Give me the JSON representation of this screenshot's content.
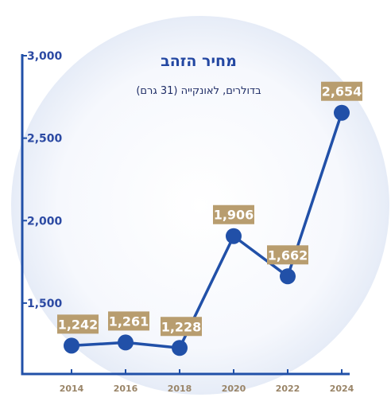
{
  "colors": {
    "line": "#2150a8",
    "axis": "#2150a8",
    "label_bg": "#b89d6f",
    "label_text": "#ffffff",
    "tick_text": "#2c4aa3",
    "xtick_text": "#9a8568",
    "title": "#2347a2",
    "background_circle": "#e8edf8"
  },
  "chart_data": {
    "type": "line",
    "title": "מחיר הזהב",
    "subtitle": "בדולרים, לאונקייה (31 גרם)",
    "x": [
      2014,
      2016,
      2018,
      2020,
      2022,
      2024
    ],
    "series": [
      {
        "values": [
          1242,
          1261,
          1228,
          1906,
          1662,
          2654
        ]
      }
    ],
    "data_labels": [
      "1,242",
      "1,261",
      "1,228",
      "1,906",
      "1,662",
      "2,654"
    ],
    "y_ticks": [
      1500,
      2000,
      2500,
      3000
    ],
    "y_tick_labels": [
      "1,500",
      "2,000",
      "2,500",
      "3,000"
    ],
    "x_tick_labels": [
      "2014",
      "2016",
      "2018",
      "2020",
      "2022",
      "2024"
    ],
    "ylim": [
      1070,
      3000
    ],
    "grid": false,
    "legend": "none"
  }
}
